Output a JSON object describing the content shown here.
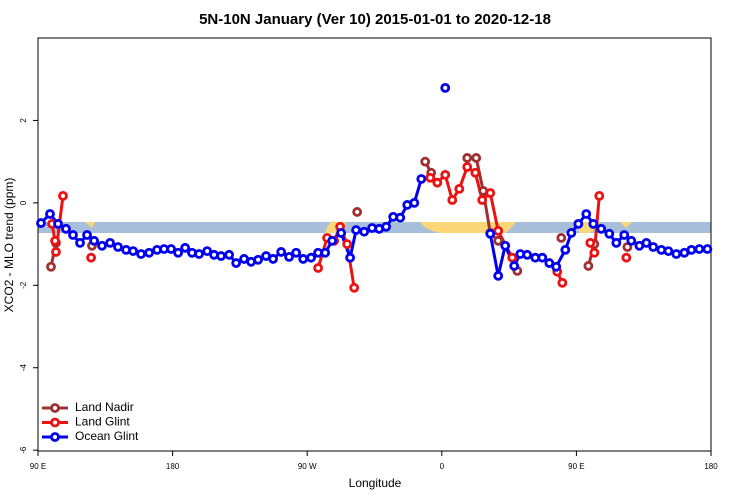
{
  "chart_data": {
    "type": "line",
    "title": "5N-10N January (Ver 10)   2015-01-01 to 2020-12-18",
    "xlabel": "Longitude",
    "ylabel": "XCO2 - MLO trend (ppm)",
    "xlim": [
      90,
      540
    ],
    "ylim": [
      -6.02,
      4
    ],
    "xticks": [
      {
        "value": 90,
        "label": "90 E"
      },
      180,
      {
        "value": 270,
        "label": "90 W"
      },
      {
        "value": 360,
        "label": "0"
      },
      {
        "value": 450,
        "label": "90 E"
      },
      {
        "value": 540,
        "label": "180"
      }
    ],
    "yticks": [
      -6,
      -4,
      -2,
      0,
      2
    ],
    "legend": "bottom-left",
    "series": [
      {
        "name": "Land Nadir",
        "color": "#a03030",
        "x": [
          98.7,
          102.0,
          null,
          126.1,
          null,
          303.4,
          null,
          348.9,
          352.9,
          null,
          377.0,
          383.0,
          387.7,
          392.4,
          397.7,
          null,
          410.5,
          null,
          439.9,
          null,
          458.0,
          462.0,
          null,
          484.1
        ],
        "values": [
          -1.55,
          -0.97,
          null,
          -1.04,
          null,
          -0.22,
          null,
          1.0,
          0.73,
          null,
          1.09,
          1.09,
          0.29,
          -0.73,
          -0.92,
          null,
          -1.65,
          null,
          -0.85,
          null,
          -1.53,
          -1.0,
          null,
          -1.07
        ]
      },
      {
        "name": "Land Glint",
        "color": "#ee1111",
        "x": [
          99.4,
          101.4,
          102.0,
          106.7,
          null,
          125.5,
          null,
          277.3,
          283.3,
          288.0,
          292.0,
          296.7,
          301.4,
          null,
          352.3,
          357.0,
          362.3,
          367.0,
          371.7,
          377.0,
          382.4,
          387.0,
          392.4,
          397.7,
          407.1,
          null,
          437.2,
          440.6,
          null,
          459.3,
          462.0,
          465.3,
          null,
          483.4
        ],
        "values": [
          -0.51,
          -0.92,
          -1.19,
          0.17,
          null,
          -1.33,
          null,
          -1.58,
          -0.85,
          -0.92,
          -0.58,
          -1.0,
          -2.06,
          null,
          0.61,
          0.49,
          0.68,
          0.07,
          0.34,
          0.87,
          0.73,
          0.07,
          0.24,
          -0.68,
          -1.33,
          null,
          -1.67,
          -1.94,
          null,
          -0.97,
          -1.21,
          0.17,
          null,
          -1.33
        ]
      },
      {
        "name": "Ocean Glint",
        "color": "#0000ee",
        "x": [
          92.0,
          98.0,
          103.4,
          108.7,
          113.4,
          118.1,
          122.8,
          127.5,
          132.8,
          138.2,
          143.5,
          148.9,
          153.6,
          158.9,
          164.3,
          169.6,
          174.3,
          179.0,
          183.7,
          188.4,
          193.0,
          197.7,
          203.1,
          207.7,
          212.4,
          217.8,
          222.5,
          227.8,
          232.5,
          237.2,
          242.5,
          247.2,
          252.6,
          257.9,
          262.6,
          267.3,
          272.6,
          277.3,
          282.0,
          286.7,
          292.7,
          298.7,
          302.7,
          308.1,
          313.4,
          318.1,
          322.8,
          327.5,
          332.2,
          336.9,
          341.6,
          346.3,
          null,
          362.3,
          null,
          392.4,
          397.7,
          402.4,
          408.4,
          412.5,
          417.1,
          422.5,
          427.2,
          431.9,
          436.5,
          442.6,
          446.6,
          451.3,
          456.6,
          461.3,
          466.6,
          472.0,
          476.7,
          482.0,
          486.7,
          492.1,
          496.8,
          501.4,
          506.8,
          511.5,
          516.8,
          522.2,
          526.9,
          532.2,
          537.6
        ],
        "values": [
          -0.49,
          -0.27,
          -0.51,
          -0.63,
          -0.78,
          -0.97,
          -0.78,
          -0.92,
          -1.04,
          -0.97,
          -1.07,
          -1.14,
          -1.17,
          -1.24,
          -1.21,
          -1.14,
          -1.12,
          -1.12,
          -1.21,
          -1.09,
          -1.21,
          -1.24,
          -1.17,
          -1.26,
          -1.29,
          -1.26,
          -1.46,
          -1.36,
          -1.43,
          -1.38,
          -1.29,
          -1.36,
          -1.19,
          -1.31,
          -1.21,
          -1.36,
          -1.33,
          -1.21,
          -1.21,
          -0.92,
          -0.73,
          -1.33,
          -0.66,
          -0.7,
          -0.61,
          -0.63,
          -0.58,
          -0.34,
          -0.36,
          -0.05,
          0,
          0.58,
          null,
          2.79,
          null,
          -0.75,
          -1.77,
          -1.04,
          -1.53,
          -1.24,
          -1.26,
          -1.33,
          -1.33,
          -1.46,
          -1.55,
          -1.14,
          -0.73,
          -0.51,
          -0.27,
          -0.51,
          -0.63,
          -0.75,
          -0.97,
          -0.78,
          -0.92,
          -1.04,
          -0.97,
          -1.07,
          -1.14,
          -1.17,
          -1.24,
          -1.21,
          -1.14,
          -1.12,
          -1.12
        ]
      }
    ]
  }
}
